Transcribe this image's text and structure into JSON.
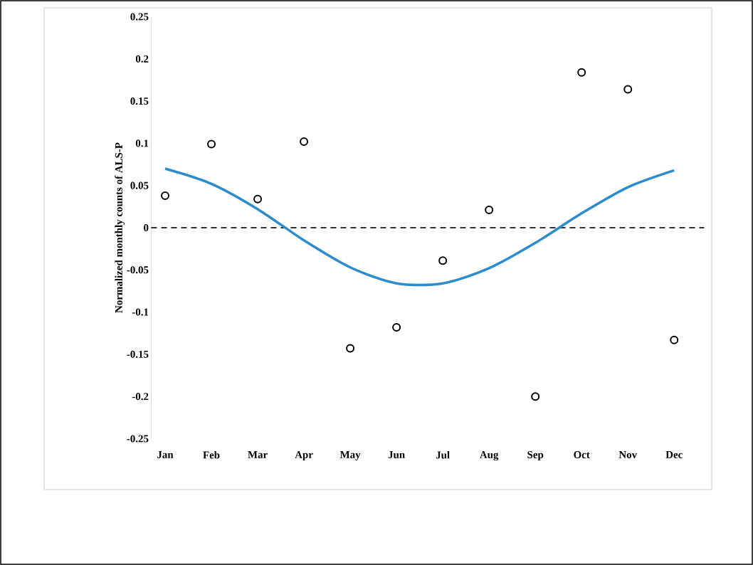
{
  "chart_data": {
    "type": "scatter",
    "ylabel": "Normalized monthly counts of ALS-P",
    "categories": [
      "Jan",
      "Feb",
      "Mar",
      "Apr",
      "May",
      "Jun",
      "Jul",
      "Aug",
      "Sep",
      "Oct",
      "Nov",
      "Dec"
    ],
    "series": [
      {
        "color": "#000000",
        "marker": "circle",
        "values": [
          0.038,
          0.099,
          0.034,
          0.102,
          -0.143,
          -0.118,
          -0.039,
          0.021,
          -0.2,
          0.184,
          0.164,
          -0.133
        ]
      },
      {
        "type": "line",
        "color": "#2b8ccc",
        "marker": "none",
        "line_style": "solid",
        "values": [
          0.07,
          0.052,
          0.022,
          -0.015,
          -0.047,
          -0.066,
          -0.066,
          -0.048,
          -0.018,
          0.017,
          0.048,
          0.068
        ]
      }
    ],
    "ylim": [
      -0.25,
      0.25
    ],
    "yticks": [
      -0.25,
      -0.2,
      -0.15,
      -0.1,
      -0.05,
      0,
      0.05,
      0.1,
      0.15,
      0.2,
      0.25
    ],
    "ref_lines": [
      {
        "axis": "y",
        "value": 0,
        "color": "#333333",
        "line_style": "dashed"
      }
    ],
    "grid": false
  }
}
